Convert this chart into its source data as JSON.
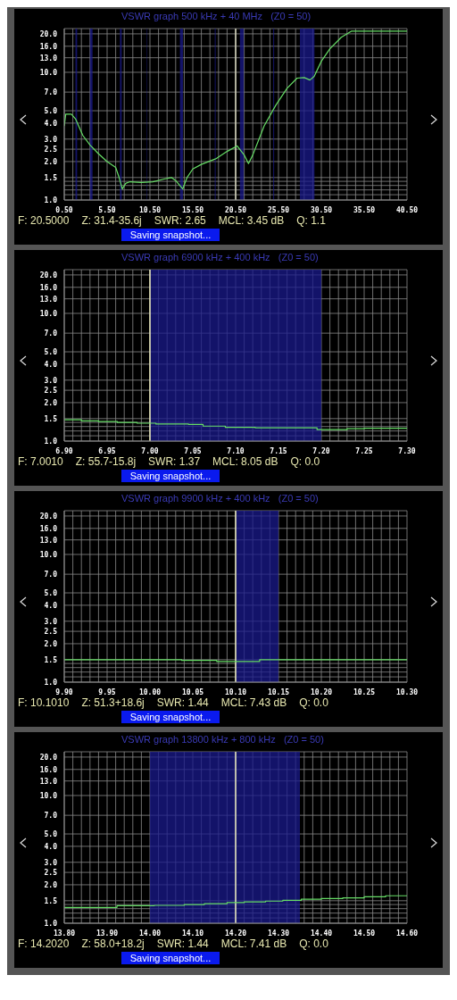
{
  "chart_data": [
    {
      "type": "line",
      "title": "VSWR graph 500 kHz + 40 MHz   (Z0 = 50)",
      "log": true,
      "grid": true,
      "xlim": [
        0.5,
        40.5
      ],
      "xticks": [
        {
          "value": 0.5,
          "label": "0.50"
        },
        {
          "value": 1.5,
          "label": null
        },
        {
          "value": 2.5,
          "label": null
        },
        {
          "value": 3.5,
          "label": null
        },
        {
          "value": 4.5,
          "label": null
        },
        {
          "value": 5.5,
          "label": "5.50"
        },
        {
          "value": 6.5,
          "label": null
        },
        {
          "value": 7.5,
          "label": null
        },
        {
          "value": 8.5,
          "label": null
        },
        {
          "value": 9.5,
          "label": null
        },
        {
          "value": 10.5,
          "label": "10.50"
        },
        {
          "value": 11.5,
          "label": null
        },
        {
          "value": 12.5,
          "label": null
        },
        {
          "value": 13.5,
          "label": null
        },
        {
          "value": 14.5,
          "label": null
        },
        {
          "value": 15.5,
          "label": "15.50"
        },
        {
          "value": 16.5,
          "label": null
        },
        {
          "value": 17.5,
          "label": null
        },
        {
          "value": 18.5,
          "label": null
        },
        {
          "value": 19.5,
          "label": null
        },
        {
          "value": 20.5,
          "label": "20.50"
        },
        {
          "value": 21.5,
          "label": null
        },
        {
          "value": 22.5,
          "label": null
        },
        {
          "value": 23.5,
          "label": null
        },
        {
          "value": 24.5,
          "label": null
        },
        {
          "value": 25.5,
          "label": "25.50"
        },
        {
          "value": 26.5,
          "label": null
        },
        {
          "value": 27.5,
          "label": null
        },
        {
          "value": 28.5,
          "label": null
        },
        {
          "value": 29.5,
          "label": null
        },
        {
          "value": 30.5,
          "label": "30.50"
        },
        {
          "value": 31.5,
          "label": null
        },
        {
          "value": 32.5,
          "label": null
        },
        {
          "value": 33.5,
          "label": null
        },
        {
          "value": 34.5,
          "label": null
        },
        {
          "value": 35.5,
          "label": "35.50"
        },
        {
          "value": 36.5,
          "label": null
        },
        {
          "value": 37.5,
          "label": null
        },
        {
          "value": 38.5,
          "label": null
        },
        {
          "value": 39.5,
          "label": null
        },
        {
          "value": 40.5,
          "label": "40.50"
        }
      ],
      "ylim": [
        1,
        22
      ],
      "yticks": [
        {
          "value": 1,
          "label": "1.0"
        },
        {
          "value": 1.1,
          "label": null
        },
        {
          "value": 1.2,
          "label": null
        },
        {
          "value": 1.3,
          "label": null
        },
        {
          "value": 1.4,
          "label": null
        },
        {
          "value": 1.5,
          "label": "1.5"
        },
        {
          "value": 2,
          "label": "2.0"
        },
        {
          "value": 2.5,
          "label": "2.5"
        },
        {
          "value": 3,
          "label": "3.0"
        },
        {
          "value": 4,
          "label": "4.0"
        },
        {
          "value": 5,
          "label": "5.0"
        },
        {
          "value": 7,
          "label": "7.0"
        },
        {
          "value": 10,
          "label": "10.0"
        },
        {
          "value": 13,
          "label": "13.0"
        },
        {
          "value": 16,
          "label": "16.0"
        },
        {
          "value": 20,
          "label": "20.0"
        }
      ],
      "series": [
        {
          "color": "#66dd66",
          "x": [
            0.5,
            0.67,
            1.33,
            1.83,
            2.67,
            3.5,
            4.5,
            5.5,
            6.5,
            6.9,
            7.27,
            7.67,
            8.17,
            9.5,
            10.83,
            12.17,
            13.0,
            13.5,
            14.33,
            14.83,
            15.5,
            16.5,
            18.17,
            19.5,
            20.67,
            21.5,
            22.0,
            22.5,
            23.83,
            25.17,
            26.5,
            27.67,
            28.5,
            29.17,
            29.67,
            30.5,
            31.5,
            32.83,
            34.0,
            40.5
          ],
          "values": [
            3.8,
            4.7,
            4.7,
            4.3,
            3.2,
            2.7,
            2.3,
            2.0,
            1.8,
            1.5,
            1.22,
            1.35,
            1.39,
            1.37,
            1.39,
            1.46,
            1.5,
            1.42,
            1.22,
            1.5,
            1.75,
            1.9,
            2.1,
            2.4,
            2.65,
            2.25,
            1.93,
            2.25,
            3.8,
            5.5,
            7.5,
            9.0,
            9.1,
            8.7,
            9.3,
            12.2,
            15.3,
            18.8,
            21,
            21
          ]
        }
      ],
      "bands": [
        {
          "axis": "x",
          "from": 1.81,
          "to": 2.0,
          "color": "#1a1a8c"
        },
        {
          "axis": "x",
          "from": 3.5,
          "to": 3.8,
          "color": "#1a1a8c"
        },
        {
          "axis": "x",
          "from": 7.0,
          "to": 7.2,
          "color": "#1a1a8c"
        },
        {
          "axis": "x",
          "from": 10.1,
          "to": 10.15,
          "color": "#1a1a8c"
        },
        {
          "axis": "x",
          "from": 14.0,
          "to": 14.35,
          "color": "#1a1a8c"
        },
        {
          "axis": "x",
          "from": 18.068,
          "to": 18.168,
          "color": "#1a1a8c"
        },
        {
          "axis": "x",
          "from": 21.0,
          "to": 21.45,
          "color": "#1a1a8c"
        },
        {
          "axis": "x",
          "from": 24.89,
          "to": 24.99,
          "color": "#1a1a8c"
        },
        {
          "axis": "x",
          "from": 28.0,
          "to": 29.7,
          "color": "#1a1a8c"
        }
      ],
      "ref_lines": [
        {
          "axis": "x",
          "value": 20.5,
          "color": "#d8d8c0"
        }
      ],
      "annotations": [
        "F: 20.5000",
        "Z: 31.4-35.6j",
        "SWR: 2.65",
        "MCL: 3.45 dB",
        "Q: 1.1",
        "Saving snapshot..."
      ]
    },
    {
      "type": "step",
      "title": "VSWR graph 6900 kHz + 400 kHz   (Z0 = 50)",
      "log": true,
      "grid": true,
      "xlim": [
        6.9,
        7.3
      ],
      "xticks": [
        {
          "value": 6.9,
          "label": "6.90"
        },
        {
          "value": 6.91,
          "label": null
        },
        {
          "value": 6.92,
          "label": null
        },
        {
          "value": 6.93,
          "label": null
        },
        {
          "value": 6.94,
          "label": null
        },
        {
          "value": 6.95,
          "label": "6.95"
        },
        {
          "value": 6.96,
          "label": null
        },
        {
          "value": 6.97,
          "label": null
        },
        {
          "value": 6.98,
          "label": null
        },
        {
          "value": 6.99,
          "label": null
        },
        {
          "value": 7.0,
          "label": "7.00"
        },
        {
          "value": 7.01,
          "label": null
        },
        {
          "value": 7.02,
          "label": null
        },
        {
          "value": 7.03,
          "label": null
        },
        {
          "value": 7.04,
          "label": null
        },
        {
          "value": 7.05,
          "label": "7.05"
        },
        {
          "value": 7.06,
          "label": null
        },
        {
          "value": 7.07,
          "label": null
        },
        {
          "value": 7.08,
          "label": null
        },
        {
          "value": 7.09,
          "label": null
        },
        {
          "value": 7.1,
          "label": "7.10"
        },
        {
          "value": 7.11,
          "label": null
        },
        {
          "value": 7.12,
          "label": null
        },
        {
          "value": 7.13,
          "label": null
        },
        {
          "value": 7.14,
          "label": null
        },
        {
          "value": 7.15,
          "label": "7.15"
        },
        {
          "value": 7.16,
          "label": null
        },
        {
          "value": 7.17,
          "label": null
        },
        {
          "value": 7.18,
          "label": null
        },
        {
          "value": 7.19,
          "label": null
        },
        {
          "value": 7.2,
          "label": "7.20"
        },
        {
          "value": 7.21,
          "label": null
        },
        {
          "value": 7.22,
          "label": null
        },
        {
          "value": 7.23,
          "label": null
        },
        {
          "value": 7.24,
          "label": null
        },
        {
          "value": 7.25,
          "label": "7.25"
        },
        {
          "value": 7.26,
          "label": null
        },
        {
          "value": 7.27,
          "label": null
        },
        {
          "value": 7.28,
          "label": null
        },
        {
          "value": 7.29,
          "label": null
        },
        {
          "value": 7.3,
          "label": "7.30"
        }
      ],
      "ylim": [
        1,
        22
      ],
      "yticks": [
        {
          "value": 1,
          "label": "1.0"
        },
        {
          "value": 1.1,
          "label": null
        },
        {
          "value": 1.2,
          "label": null
        },
        {
          "value": 1.3,
          "label": null
        },
        {
          "value": 1.4,
          "label": null
        },
        {
          "value": 1.5,
          "label": "1.5"
        },
        {
          "value": 2,
          "label": "2.0"
        },
        {
          "value": 2.5,
          "label": "2.5"
        },
        {
          "value": 3,
          "label": "3.0"
        },
        {
          "value": 4,
          "label": "4.0"
        },
        {
          "value": 5,
          "label": "5.0"
        },
        {
          "value": 7,
          "label": "7.0"
        },
        {
          "value": 10,
          "label": "10.0"
        },
        {
          "value": 13,
          "label": "13.0"
        },
        {
          "value": 16,
          "label": "16.0"
        },
        {
          "value": 20,
          "label": "20.0"
        }
      ],
      "series": [
        {
          "color": "#66dd66",
          "x": [
            6.9,
            6.92,
            6.94,
            6.962,
            6.985,
            7.007,
            7.045,
            7.062,
            7.088,
            7.123,
            7.195,
            7.23,
            7.25,
            7.3
          ],
          "values": [
            1.47,
            1.44,
            1.42,
            1.4,
            1.38,
            1.36,
            1.35,
            1.31,
            1.28,
            1.27,
            1.23,
            1.25,
            1.26,
            1.26
          ]
        }
      ],
      "bands": [
        {
          "axis": "x",
          "from": 7.0,
          "to": 7.2,
          "color": "#1a1a8c"
        }
      ],
      "ref_lines": [
        {
          "axis": "x",
          "value": 7.0,
          "color": "#f0f0c0"
        }
      ],
      "annotations": [
        "F: 7.0010",
        "Z: 55.7-15.8j",
        "SWR: 1.37",
        "MCL: 8.05 dB",
        "Q: 0.0",
        "Saving snapshot..."
      ]
    },
    {
      "type": "step",
      "title": "VSWR graph 9900 kHz + 400 kHz   (Z0 = 50)",
      "log": true,
      "grid": true,
      "xlim": [
        9.9,
        10.3
      ],
      "xticks": [
        {
          "value": 9.9,
          "label": "9.90"
        },
        {
          "value": 9.91,
          "label": null
        },
        {
          "value": 9.92,
          "label": null
        },
        {
          "value": 9.93,
          "label": null
        },
        {
          "value": 9.94,
          "label": null
        },
        {
          "value": 9.95,
          "label": "9.95"
        },
        {
          "value": 9.96,
          "label": null
        },
        {
          "value": 9.97,
          "label": null
        },
        {
          "value": 9.98,
          "label": null
        },
        {
          "value": 9.99,
          "label": null
        },
        {
          "value": 10.0,
          "label": "10.00"
        },
        {
          "value": 10.01,
          "label": null
        },
        {
          "value": 10.02,
          "label": null
        },
        {
          "value": 10.03,
          "label": null
        },
        {
          "value": 10.04,
          "label": null
        },
        {
          "value": 10.05,
          "label": "10.05"
        },
        {
          "value": 10.06,
          "label": null
        },
        {
          "value": 10.07,
          "label": null
        },
        {
          "value": 10.08,
          "label": null
        },
        {
          "value": 10.09,
          "label": null
        },
        {
          "value": 10.1,
          "label": "10.10"
        },
        {
          "value": 10.11,
          "label": null
        },
        {
          "value": 10.12,
          "label": null
        },
        {
          "value": 10.13,
          "label": null
        },
        {
          "value": 10.14,
          "label": null
        },
        {
          "value": 10.15,
          "label": "10.15"
        },
        {
          "value": 10.16,
          "label": null
        },
        {
          "value": 10.17,
          "label": null
        },
        {
          "value": 10.18,
          "label": null
        },
        {
          "value": 10.19,
          "label": null
        },
        {
          "value": 10.2,
          "label": "10.20"
        },
        {
          "value": 10.21,
          "label": null
        },
        {
          "value": 10.22,
          "label": null
        },
        {
          "value": 10.23,
          "label": null
        },
        {
          "value": 10.24,
          "label": null
        },
        {
          "value": 10.25,
          "label": "10.25"
        },
        {
          "value": 10.26,
          "label": null
        },
        {
          "value": 10.27,
          "label": null
        },
        {
          "value": 10.28,
          "label": null
        },
        {
          "value": 10.29,
          "label": null
        },
        {
          "value": 10.3,
          "label": "10.30"
        }
      ],
      "ylim": [
        1,
        22
      ],
      "yticks": [
        {
          "value": 1,
          "label": "1.0"
        },
        {
          "value": 1.1,
          "label": null
        },
        {
          "value": 1.2,
          "label": null
        },
        {
          "value": 1.3,
          "label": null
        },
        {
          "value": 1.4,
          "label": null
        },
        {
          "value": 1.5,
          "label": "1.5"
        },
        {
          "value": 2,
          "label": "2.0"
        },
        {
          "value": 2.5,
          "label": "2.5"
        },
        {
          "value": 3,
          "label": "3.0"
        },
        {
          "value": 4,
          "label": "4.0"
        },
        {
          "value": 5,
          "label": "5.0"
        },
        {
          "value": 7,
          "label": "7.0"
        },
        {
          "value": 10,
          "label": "10.0"
        },
        {
          "value": 13,
          "label": "13.0"
        },
        {
          "value": 16,
          "label": "16.0"
        },
        {
          "value": 20,
          "label": "20.0"
        }
      ],
      "series": [
        {
          "color": "#66dd66",
          "x": [
            9.9,
            10.037,
            10.078,
            10.128,
            10.3
          ],
          "values": [
            1.5,
            1.48,
            1.45,
            1.5,
            1.5
          ]
        }
      ],
      "bands": [
        {
          "axis": "x",
          "from": 10.1,
          "to": 10.15,
          "color": "#1a1a8c"
        }
      ],
      "ref_lines": [
        {
          "axis": "x",
          "value": 10.1,
          "color": "#f0f0c0"
        }
      ],
      "annotations": [
        "F: 10.1010",
        "Z: 51.3+18.6j",
        "SWR: 1.44",
        "MCL: 7.43 dB",
        "Q: 0.0",
        "Saving snapshot..."
      ]
    },
    {
      "type": "step",
      "title": "VSWR graph 13800 kHz + 800 kHz   (Z0 = 50)",
      "log": true,
      "grid": true,
      "xlim": [
        13.8,
        14.6
      ],
      "xticks": [
        {
          "value": 13.8,
          "label": "13.80"
        },
        {
          "value": 13.82,
          "label": null
        },
        {
          "value": 13.84,
          "label": null
        },
        {
          "value": 13.86,
          "label": null
        },
        {
          "value": 13.88,
          "label": null
        },
        {
          "value": 13.9,
          "label": "13.90"
        },
        {
          "value": 13.92,
          "label": null
        },
        {
          "value": 13.94,
          "label": null
        },
        {
          "value": 13.96,
          "label": null
        },
        {
          "value": 13.98,
          "label": null
        },
        {
          "value": 14.0,
          "label": "14.00"
        },
        {
          "value": 14.02,
          "label": null
        },
        {
          "value": 14.04,
          "label": null
        },
        {
          "value": 14.06,
          "label": null
        },
        {
          "value": 14.08,
          "label": null
        },
        {
          "value": 14.1,
          "label": "14.10"
        },
        {
          "value": 14.12,
          "label": null
        },
        {
          "value": 14.14,
          "label": null
        },
        {
          "value": 14.16,
          "label": null
        },
        {
          "value": 14.18,
          "label": null
        },
        {
          "value": 14.2,
          "label": "14.20"
        },
        {
          "value": 14.22,
          "label": null
        },
        {
          "value": 14.24,
          "label": null
        },
        {
          "value": 14.26,
          "label": null
        },
        {
          "value": 14.28,
          "label": null
        },
        {
          "value": 14.3,
          "label": "14.30"
        },
        {
          "value": 14.32,
          "label": null
        },
        {
          "value": 14.34,
          "label": null
        },
        {
          "value": 14.36,
          "label": null
        },
        {
          "value": 14.38,
          "label": null
        },
        {
          "value": 14.4,
          "label": "14.40"
        },
        {
          "value": 14.42,
          "label": null
        },
        {
          "value": 14.44,
          "label": null
        },
        {
          "value": 14.46,
          "label": null
        },
        {
          "value": 14.48,
          "label": null
        },
        {
          "value": 14.5,
          "label": "14.50"
        },
        {
          "value": 14.52,
          "label": null
        },
        {
          "value": 14.54,
          "label": null
        },
        {
          "value": 14.56,
          "label": null
        },
        {
          "value": 14.58,
          "label": null
        },
        {
          "value": 14.6,
          "label": "14.60"
        }
      ],
      "ylim": [
        1,
        22
      ],
      "yticks": [
        {
          "value": 1,
          "label": "1.0"
        },
        {
          "value": 1.1,
          "label": null
        },
        {
          "value": 1.2,
          "label": null
        },
        {
          "value": 1.3,
          "label": null
        },
        {
          "value": 1.4,
          "label": null
        },
        {
          "value": 1.5,
          "label": "1.5"
        },
        {
          "value": 2,
          "label": "2.0"
        },
        {
          "value": 2.5,
          "label": "2.5"
        },
        {
          "value": 3,
          "label": "3.0"
        },
        {
          "value": 4,
          "label": "4.0"
        },
        {
          "value": 5,
          "label": "5.0"
        },
        {
          "value": 7,
          "label": "7.0"
        },
        {
          "value": 10,
          "label": "10.0"
        },
        {
          "value": 13,
          "label": "13.0"
        },
        {
          "value": 16,
          "label": "16.0"
        },
        {
          "value": 20,
          "label": "20.0"
        }
      ],
      "series": [
        {
          "color": "#66dd66",
          "x": [
            13.8,
            13.923,
            14.01,
            14.08,
            14.127,
            14.18,
            14.22,
            14.27,
            14.31,
            14.353,
            14.4,
            14.45,
            14.5,
            14.55,
            14.6
          ],
          "values": [
            1.33,
            1.37,
            1.38,
            1.4,
            1.42,
            1.45,
            1.47,
            1.49,
            1.51,
            1.54,
            1.56,
            1.58,
            1.61,
            1.64,
            1.64
          ]
        }
      ],
      "bands": [
        {
          "axis": "x",
          "from": 14.0,
          "to": 14.35,
          "color": "#1a1a8c"
        }
      ],
      "ref_lines": [
        {
          "axis": "x",
          "value": 14.2,
          "color": "#f0f0c0"
        }
      ],
      "annotations": [
        "F: 14.2020",
        "Z: 58.0+18.2j",
        "SWR: 1.44",
        "MCL: 7.41 dB",
        "Q: 0.0",
        "Saving snapshot..."
      ]
    }
  ]
}
